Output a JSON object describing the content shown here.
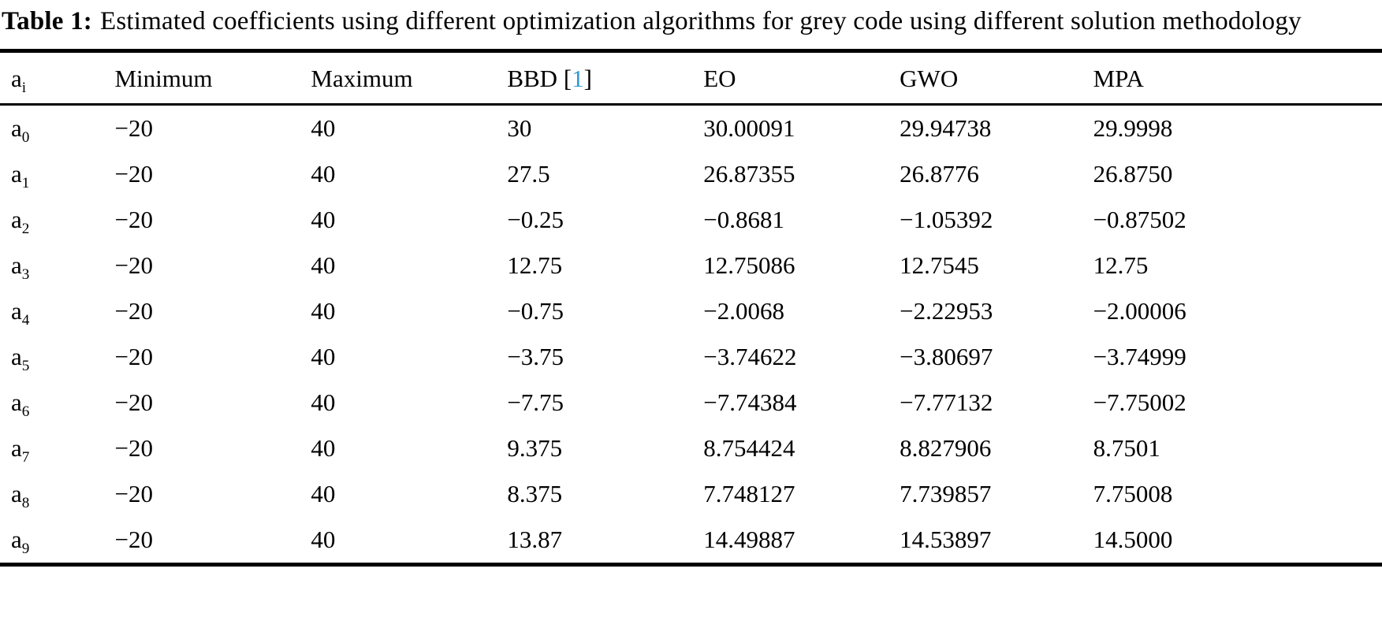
{
  "caption": {
    "label": "Table 1:",
    "text": "Estimated coefficients using different optimization algorithms for grey code using different solution methodology"
  },
  "colors": {
    "background": "#ffffff",
    "text": "#000000",
    "rule": "#000000",
    "citation_link": "#2e9bd6"
  },
  "table": {
    "header": {
      "ai_base": "a",
      "ai_sub": "i",
      "min": "Minimum",
      "max": "Maximum",
      "bbd": "BBD",
      "cite_open": " [",
      "cite_num": "1",
      "cite_close": "]",
      "eo": "EO",
      "gwo": "GWO",
      "mpa": "MPA"
    },
    "rows": [
      {
        "base": "a",
        "sub": "0",
        "min": "−20",
        "max": "40",
        "bbd": "30",
        "eo": "30.00091",
        "gwo": "29.94738",
        "mpa": "29.9998"
      },
      {
        "base": "a",
        "sub": "1",
        "min": "−20",
        "max": "40",
        "bbd": "27.5",
        "eo": "26.87355",
        "gwo": "26.8776",
        "mpa": "26.8750"
      },
      {
        "base": "a",
        "sub": "2",
        "min": "−20",
        "max": "40",
        "bbd": "−0.25",
        "eo": "−0.8681",
        "gwo": "−1.05392",
        "mpa": "−0.87502"
      },
      {
        "base": "a",
        "sub": "3",
        "min": "−20",
        "max": "40",
        "bbd": "12.75",
        "eo": "12.75086",
        "gwo": "12.7545",
        "mpa": "12.75"
      },
      {
        "base": "a",
        "sub": "4",
        "min": "−20",
        "max": "40",
        "bbd": "−0.75",
        "eo": "−2.0068",
        "gwo": "−2.22953",
        "mpa": "−2.00006"
      },
      {
        "base": "a",
        "sub": "5",
        "min": "−20",
        "max": "40",
        "bbd": "−3.75",
        "eo": "−3.74622",
        "gwo": "−3.80697",
        "mpa": "−3.74999"
      },
      {
        "base": "a",
        "sub": "6",
        "min": "−20",
        "max": "40",
        "bbd": "−7.75",
        "eo": "−7.74384",
        "gwo": "−7.77132",
        "mpa": "−7.75002"
      },
      {
        "base": "a",
        "sub": "7",
        "min": "−20",
        "max": "40",
        "bbd": "9.375",
        "eo": "8.754424",
        "gwo": "8.827906",
        "mpa": "8.7501"
      },
      {
        "base": "a",
        "sub": "8",
        "min": "−20",
        "max": "40",
        "bbd": "8.375",
        "eo": "7.748127",
        "gwo": "7.739857",
        "mpa": "7.75008"
      },
      {
        "base": "a",
        "sub": "9",
        "min": "−20",
        "max": "40",
        "bbd": "13.87",
        "eo": "14.49887",
        "gwo": "14.53897",
        "mpa": "14.5000"
      }
    ]
  }
}
